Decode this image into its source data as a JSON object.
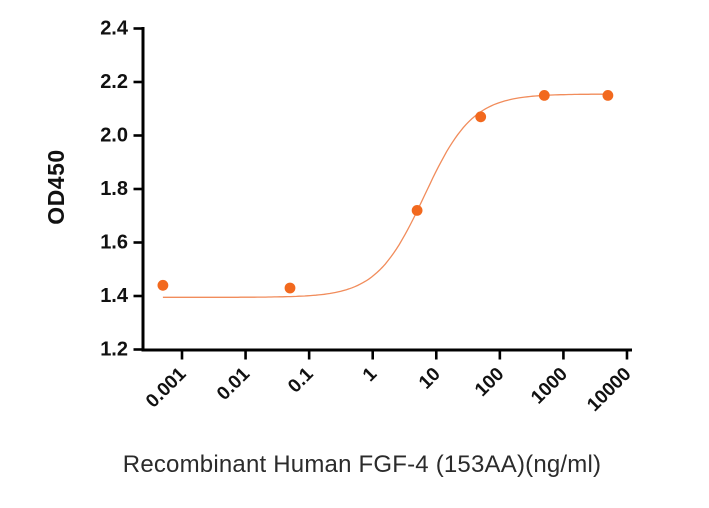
{
  "chart_data": {
    "type": "scatter",
    "title": "",
    "xlabel": "Recombinant Human FGF-4 (153AA)(ng/ml)",
    "ylabel": "OD450",
    "x_scale": "log10",
    "x_tick_labels": [
      "0.001",
      "0.01",
      "0.1",
      "1",
      "10",
      "100",
      "1000",
      "10000"
    ],
    "y_tick_labels": [
      "2.4",
      "2.2",
      "2.0",
      "1.8",
      "1.6",
      "1.4",
      "1.2"
    ],
    "y_tick_values": [
      2.4,
      2.2,
      2.0,
      1.8,
      1.6,
      1.4,
      1.2
    ],
    "ylim": [
      1.2,
      2.4
    ],
    "xlim": [
      0.001,
      10000
    ],
    "grid": false,
    "legend": "none",
    "points": [
      {
        "x": 0.0005,
        "y": 1.44
      },
      {
        "x": 0.05,
        "y": 1.43
      },
      {
        "x": 5,
        "y": 1.72
      },
      {
        "x": 50,
        "y": 2.07
      },
      {
        "x": 500,
        "y": 2.15
      },
      {
        "x": 5000,
        "y": 2.15
      }
    ],
    "fit_curve": {
      "model": "4PL",
      "bottom": 1.395,
      "top": 2.155,
      "ec50": 6.5,
      "hill": 1.15
    },
    "colors": {
      "marker": "#F2691E",
      "curve": "#F08049",
      "axis": "#000000",
      "tick_text": "#111111",
      "title_text": "#2b2b2b"
    }
  }
}
